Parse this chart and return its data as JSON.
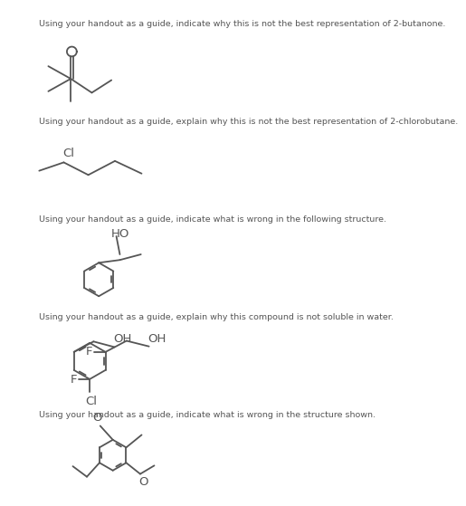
{
  "bg_color": "#ffffff",
  "text_color": "#555555",
  "line_color": "#555555",
  "font_size_q": 6.8,
  "lw": 1.3,
  "questions": [
    "Using your handout as a guide, indicate why this is not the best representation of 2-butanone.",
    "Using your handout as a guide, explain why this is not the best representation of 2-chlorobutane.",
    "Using your handout as a guide, indicate what is wrong in the following structure.",
    "Using your handout as a guide, explain why this compound is not soluble in water.",
    "Using your handout as a guide, indicate what is wrong in the structure shown."
  ]
}
